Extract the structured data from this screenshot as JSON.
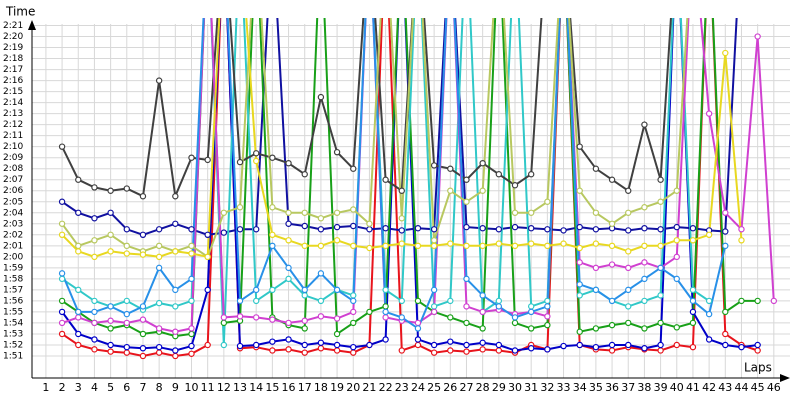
{
  "chart_data": {
    "type": "line",
    "y_label": "Time",
    "x_label": "Laps",
    "xlim": [
      0.14,
      47
    ],
    "ylim": [
      109,
      141.5
    ],
    "grid": true,
    "xticks": [
      1,
      2,
      3,
      4,
      5,
      6,
      7,
      8,
      9,
      10,
      11,
      12,
      13,
      14,
      15,
      16,
      17,
      18,
      19,
      20,
      21,
      22,
      23,
      24,
      25,
      26,
      27,
      28,
      29,
      30,
      31,
      32,
      33,
      34,
      35,
      36,
      37,
      38,
      39,
      40,
      41,
      42,
      43,
      44,
      45,
      46
    ],
    "yticks": [
      {
        "value": 111,
        "label": "1:51"
      },
      {
        "value": 112,
        "label": "1:52"
      },
      {
        "value": 113,
        "label": "1:53"
      },
      {
        "value": 114,
        "label": "1:54"
      },
      {
        "value": 115,
        "label": "1:55"
      },
      {
        "value": 116,
        "label": "1:56"
      },
      {
        "value": 117,
        "label": "1:57"
      },
      {
        "value": 118,
        "label": "1:58"
      },
      {
        "value": 119,
        "label": "1:59"
      },
      {
        "value": 120,
        "label": "2:00"
      },
      {
        "value": 121,
        "label": "2:01"
      },
      {
        "value": 122,
        "label": "2:02"
      },
      {
        "value": 123,
        "label": "2:03"
      },
      {
        "value": 124,
        "label": "2:04"
      },
      {
        "value": 125,
        "label": "2:05"
      },
      {
        "value": 126,
        "label": "2:06"
      },
      {
        "value": 127,
        "label": "2:07"
      },
      {
        "value": 128,
        "label": "2:08"
      },
      {
        "value": 129,
        "label": "2:09"
      },
      {
        "value": 130,
        "label": "2:10"
      },
      {
        "value": 131,
        "label": "2:11"
      },
      {
        "value": 132,
        "label": "2:12"
      },
      {
        "value": 133,
        "label": "2:13"
      },
      {
        "value": 134,
        "label": "2:14"
      },
      {
        "value": 135,
        "label": "2:15"
      },
      {
        "value": 136,
        "label": "2:16"
      },
      {
        "value": 137,
        "label": "2:17"
      },
      {
        "value": 138,
        "label": "2:18"
      },
      {
        "value": 139,
        "label": "2:19"
      },
      {
        "value": 140,
        "label": "2:20"
      },
      {
        "value": 141,
        "label": "2:21"
      }
    ],
    "x": [
      1,
      2,
      3,
      4,
      5,
      6,
      7,
      8,
      9,
      10,
      11,
      12,
      13,
      14,
      15,
      16,
      17,
      18,
      19,
      20,
      21,
      22,
      23,
      24,
      25,
      26,
      27,
      28,
      29,
      30,
      31,
      32,
      33,
      34,
      35,
      36,
      37,
      38,
      39,
      40,
      41,
      42,
      43,
      44,
      45,
      46
    ],
    "series": [
      {
        "color": "#e8141c",
        "values": [
          null,
          113,
          112,
          111.6,
          111.4,
          111.3,
          111.0,
          111.3,
          111.0,
          111.2,
          112,
          150,
          111.7,
          111.8,
          111.5,
          111.6,
          111.3,
          111.7,
          111.5,
          111.3,
          112,
          150,
          111.5,
          112,
          111.3,
          111.5,
          111.4,
          111.6,
          111.5,
          111.3,
          112,
          111.6,
          150,
          112,
          111.6,
          111.5,
          111.8,
          111.6,
          111.5,
          112,
          111.8,
          150,
          113,
          112,
          111.5,
          null
        ]
      },
      {
        "color": "#0000c8",
        "values": [
          null,
          115,
          113,
          112.5,
          112,
          111.8,
          111.7,
          111.8,
          111.5,
          111.9,
          117,
          150,
          111.9,
          112,
          112.3,
          112.5,
          112,
          112.2,
          112,
          111.8,
          112,
          112.5,
          150,
          112.5,
          112,
          112.3,
          112,
          112.2,
          112,
          111.5,
          111.7,
          111.6,
          111.9,
          112,
          111.8,
          112,
          112,
          111.7,
          112,
          150,
          115,
          112.5,
          112,
          111.8,
          112,
          null
        ]
      },
      {
        "color": "#1010a0",
        "values": [
          null,
          125,
          124,
          123.5,
          124,
          122.5,
          122,
          122.5,
          123,
          122.5,
          122,
          122.2,
          122.5,
          122.5,
          150,
          123,
          122.8,
          122.5,
          122.7,
          122.8,
          122.5,
          122.6,
          122.4,
          122.6,
          122.5,
          150,
          122.7,
          122.6,
          122.5,
          122.7,
          122.6,
          122.5,
          122.4,
          122.7,
          122.5,
          122.6,
          122.4,
          122.6,
          122.5,
          122.7,
          122.6,
          122.4,
          122.3,
          150,
          null,
          null
        ]
      },
      {
        "color": "#18a018",
        "values": [
          null,
          116,
          115,
          114,
          113.5,
          113.8,
          113,
          113.2,
          112.8,
          113,
          150,
          114,
          114.2,
          150,
          114.5,
          113.8,
          113.5,
          150,
          113,
          114,
          115,
          115.5,
          150,
          116,
          115,
          114.5,
          114,
          113.5,
          150,
          114,
          113.5,
          113.8,
          150,
          113.2,
          113.5,
          113.8,
          114,
          113.5,
          114,
          113.6,
          114,
          150,
          115,
          116,
          116,
          null
        ]
      },
      {
        "color": "#30c8c8",
        "values": [
          null,
          118,
          117,
          116,
          115.5,
          116,
          115.2,
          115.8,
          115.5,
          116,
          150,
          112,
          150,
          116,
          117,
          118,
          116.5,
          116,
          117,
          116.5,
          150,
          117,
          116,
          150,
          115.5,
          116,
          150,
          115,
          116,
          150,
          115.5,
          116,
          150,
          116.5,
          117,
          116,
          115.5,
          116,
          116.5,
          150,
          117,
          116,
          null,
          null,
          null,
          null
        ]
      },
      {
        "color": "#404040",
        "values": [
          null,
          130,
          127,
          126.3,
          126,
          126.2,
          125.5,
          136,
          125.5,
          129,
          128.8,
          150,
          128.6,
          129.4,
          129,
          128.5,
          127.5,
          134.5,
          129.5,
          128,
          150,
          127,
          126,
          150,
          128.3,
          128,
          127,
          128.5,
          127.5,
          126.5,
          127.5,
          150,
          150,
          130,
          128,
          127,
          126,
          132,
          127,
          150,
          null,
          null,
          null,
          null,
          null,
          null
        ]
      },
      {
        "color": "#d040d0",
        "values": [
          null,
          114,
          114.5,
          114,
          114.2,
          114,
          114.3,
          113.5,
          113.2,
          113.5,
          150,
          114.5,
          114.6,
          114.5,
          114.3,
          114,
          114.2,
          114.6,
          114.4,
          115,
          150,
          114.5,
          114.2,
          114,
          115,
          150,
          115.5,
          115,
          115.2,
          114.8,
          115,
          114.6,
          150,
          119.5,
          119,
          119.3,
          119,
          119.5,
          119,
          120,
          150,
          133,
          124,
          122.5,
          140,
          116
        ]
      },
      {
        "color": "#2890e8",
        "values": [
          null,
          118.5,
          115,
          115,
          115.5,
          114.8,
          115.5,
          119,
          117,
          118,
          150,
          150,
          116,
          117,
          121,
          119,
          117,
          118.5,
          117,
          116,
          150,
          115,
          114.5,
          113.5,
          117,
          150,
          118,
          116.5,
          115.5,
          114.5,
          115,
          115.5,
          150,
          117.5,
          117,
          116,
          117,
          118,
          119,
          118,
          116,
          114.8,
          121,
          null,
          null,
          null
        ]
      },
      {
        "color": "#b8c860",
        "values": [
          null,
          123,
          121,
          121.5,
          122,
          121,
          120.5,
          121,
          120.5,
          121,
          120,
          124,
          124.5,
          150,
          124.5,
          124,
          124,
          123.5,
          124,
          124.3,
          123,
          150,
          123.5,
          150,
          121.5,
          126,
          125,
          126,
          150,
          124,
          124,
          125,
          150,
          126,
          124,
          123,
          124,
          124.5,
          125,
          126,
          150,
          null,
          null,
          null,
          null,
          null
        ]
      },
      {
        "color": "#e8d820",
        "values": [
          null,
          122,
          120.5,
          120,
          120.5,
          120.3,
          120.2,
          120,
          120.5,
          120.3,
          120,
          150,
          150,
          128.7,
          122,
          121.5,
          121,
          121,
          121.5,
          121,
          120.8,
          121,
          121.2,
          121,
          121,
          121.2,
          121,
          121,
          121.2,
          121,
          121.2,
          121,
          121.2,
          120.8,
          121.2,
          121,
          120.5,
          121,
          121,
          121.5,
          121.5,
          122,
          138.5,
          121.5,
          null,
          null
        ]
      }
    ]
  }
}
